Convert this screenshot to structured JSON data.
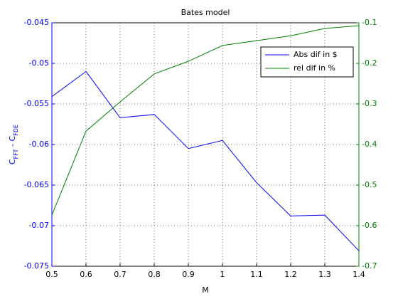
{
  "chart_data": {
    "type": "line",
    "title": "Bates model",
    "xlabel": "M",
    "ylabel": [
      "C",
      "FFT",
      " - C",
      "FDE"
    ],
    "x": [
      0.5,
      0.6,
      0.7,
      0.8,
      0.9,
      1.0,
      1.1,
      1.2,
      1.3,
      1.4
    ],
    "series": [
      {
        "name": "Abs dif in $",
        "color": "#0000ff",
        "values": [
          -0.0541,
          -0.051,
          -0.0567,
          -0.0563,
          -0.0605,
          -0.0595,
          -0.0647,
          -0.0688,
          -0.0687,
          -0.0731
        ]
      },
      {
        "name": "rel dif in %",
        "color": "#008000",
        "axis": "y2",
        "values": [
          -0.574,
          -0.367,
          -0.295,
          -0.226,
          -0.195,
          -0.156,
          -0.144,
          -0.132,
          -0.114,
          -0.107
        ]
      }
    ],
    "xlim": [
      0.5,
      1.4
    ],
    "xticks": [
      0.5,
      0.6,
      0.7,
      0.8,
      0.9,
      1,
      1.1,
      1.2,
      1.3,
      1.4
    ],
    "ylim": [
      -0.075,
      -0.045
    ],
    "yticks": [
      -0.075,
      -0.07,
      -0.065,
      -0.06,
      -0.055,
      -0.05,
      -0.045
    ],
    "y2lim": [
      -0.7,
      -0.1
    ],
    "y2ticks": [
      -0.7,
      -0.6,
      -0.5,
      -0.4,
      -0.3,
      -0.2,
      -0.1
    ],
    "grid": true,
    "legend": "upper right"
  }
}
